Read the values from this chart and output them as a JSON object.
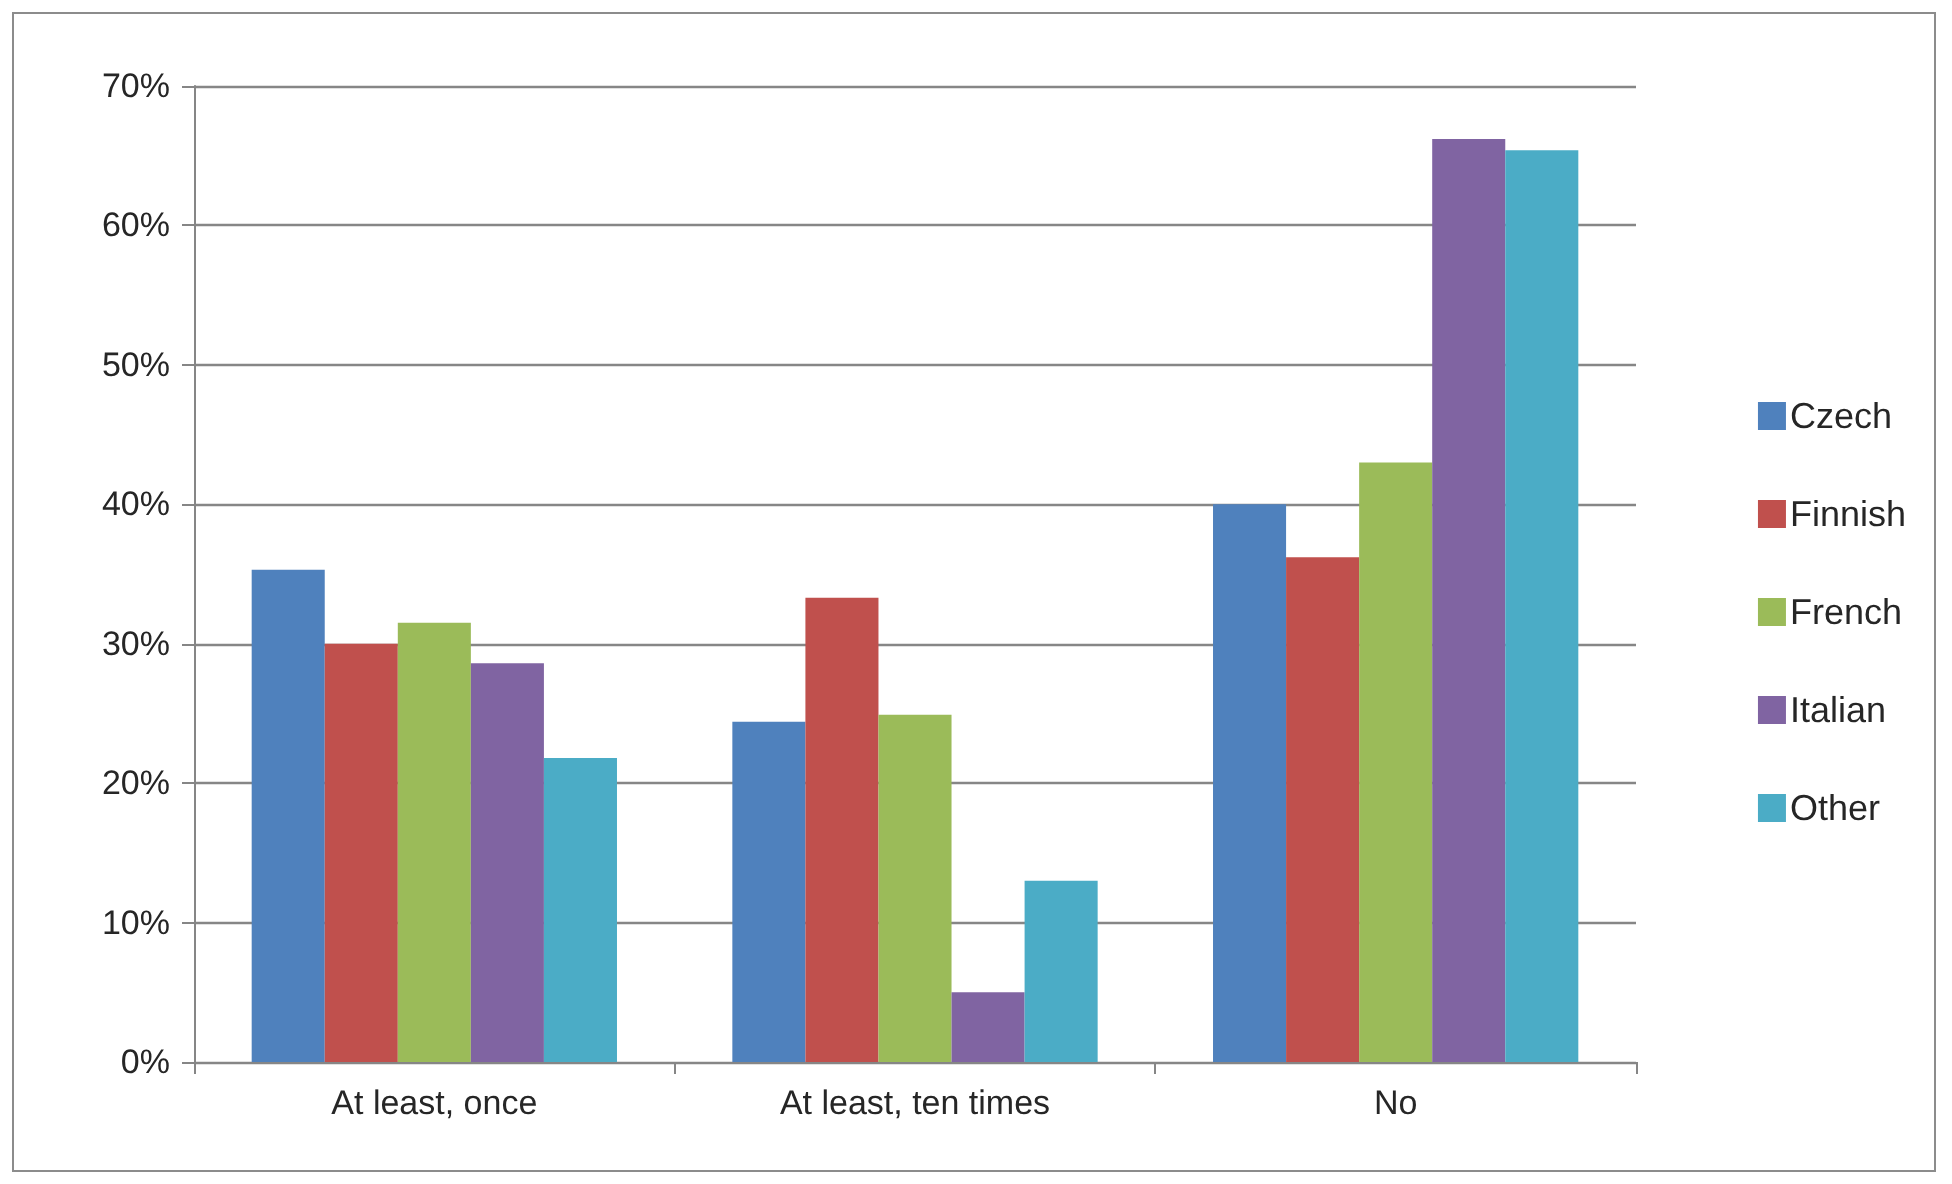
{
  "chart_data": {
    "type": "bar",
    "categories": [
      "At least, once",
      "At least, ten times",
      "No"
    ],
    "series": [
      {
        "name": "Czech",
        "color": "#4f81bd",
        "values": [
          35.3,
          24.4,
          40.0
        ]
      },
      {
        "name": "Finnish",
        "color": "#c0504d",
        "values": [
          30.0,
          33.3,
          36.2
        ]
      },
      {
        "name": "French",
        "color": "#9bbb59",
        "values": [
          31.5,
          24.9,
          43.0
        ]
      },
      {
        "name": "Italian",
        "color": "#8064a2",
        "values": [
          28.6,
          5.0,
          66.2
        ]
      },
      {
        "name": "Other",
        "color": "#4bacc6",
        "values": [
          21.8,
          13.0,
          65.4
        ]
      }
    ],
    "ylim": [
      0,
      70
    ],
    "yticks": [
      {
        "value": 0,
        "label": "0%"
      },
      {
        "value": 10,
        "label": "10%"
      },
      {
        "value": 20,
        "label": "20%"
      },
      {
        "value": 30,
        "label": "30%"
      },
      {
        "value": 40,
        "label": "40%"
      },
      {
        "value": 50,
        "label": "50%"
      },
      {
        "value": 60,
        "label": "60%"
      },
      {
        "value": 70,
        "label": "70%"
      }
    ],
    "grid": "y",
    "legend": "right"
  }
}
